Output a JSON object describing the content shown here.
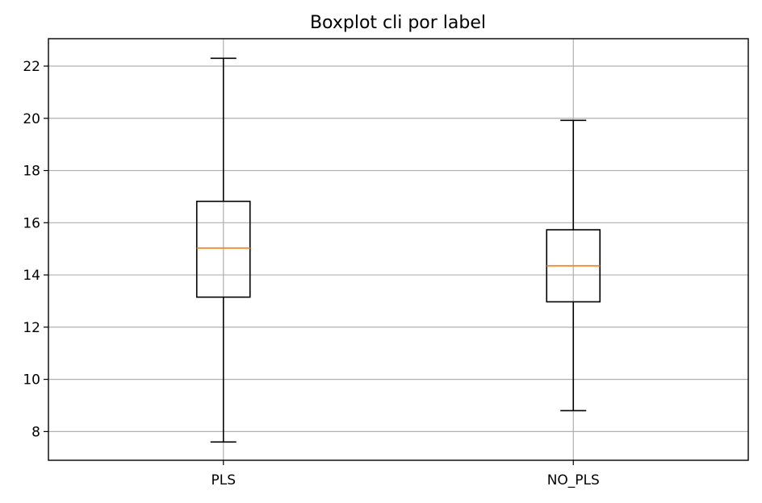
{
  "chart_data": {
    "type": "boxplot",
    "title": "Boxplot cli por label",
    "xlabel": "",
    "ylabel": "",
    "categories": [
      "PLS",
      "NO_PLS"
    ],
    "boxes": [
      {
        "label": "PLS",
        "whisker_low": 7.6,
        "q1": 13.15,
        "median": 15.03,
        "q3": 16.82,
        "whisker_high": 22.3
      },
      {
        "label": "NO_PLS",
        "whisker_low": 8.8,
        "q1": 12.97,
        "median": 14.35,
        "q3": 15.73,
        "whisker_high": 19.92
      }
    ],
    "ylim": [
      6.9,
      23.05
    ],
    "yticks": [
      8,
      10,
      12,
      14,
      16,
      18,
      20,
      22
    ],
    "grid": true,
    "colors": {
      "box": "#000000",
      "median": "#ff7f0e",
      "grid": "#b0b0b0"
    }
  }
}
